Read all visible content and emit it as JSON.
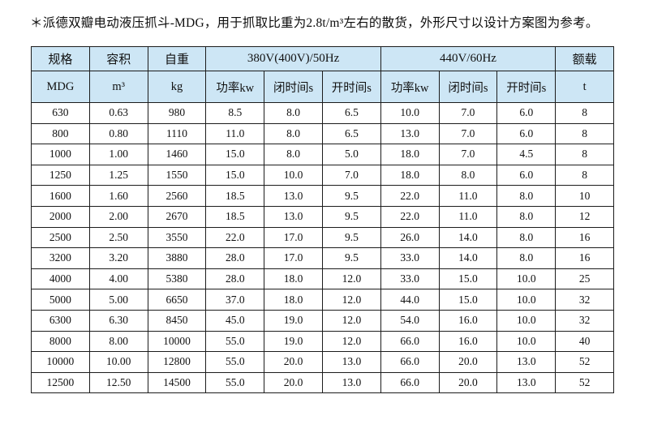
{
  "note": "＊派德双瓣电动液压抓斗-MDG，用于抓取比重为2.8t/m³左右的散货，外形尺寸以设计方案图为参考。",
  "colors": {
    "header_bg": "#cde6f5",
    "border": "#1c1c1c",
    "text": "#111111",
    "page_bg": "#ffffff"
  },
  "table": {
    "head1": {
      "spec": "规格",
      "capacity": "容积",
      "weight": "自重",
      "group_50hz": "380V(400V)/50Hz",
      "group_60hz": "440V/60Hz",
      "rated_load": "额载"
    },
    "head2": {
      "spec_unit": "MDG",
      "capacity_unit": "m³",
      "weight_unit": "kg",
      "power_50": "功率kw",
      "close_time_50": "闭时间s",
      "open_time_50": "开时间s",
      "power_60": "功率kw",
      "close_time_60": "闭时间s",
      "open_time_60": "开时间s",
      "load_unit": "t"
    },
    "rows": [
      [
        "630",
        "0.63",
        "980",
        "8.5",
        "8.0",
        "6.5",
        "10.0",
        "7.0",
        "6.0",
        "8"
      ],
      [
        "800",
        "0.80",
        "1110",
        "11.0",
        "8.0",
        "6.5",
        "13.0",
        "7.0",
        "6.0",
        "8"
      ],
      [
        "1000",
        "1.00",
        "1460",
        "15.0",
        "8.0",
        "5.0",
        "18.0",
        "7.0",
        "4.5",
        "8"
      ],
      [
        "1250",
        "1.25",
        "1550",
        "15.0",
        "10.0",
        "7.0",
        "18.0",
        "8.0",
        "6.0",
        "8"
      ],
      [
        "1600",
        "1.60",
        "2560",
        "18.5",
        "13.0",
        "9.5",
        "22.0",
        "11.0",
        "8.0",
        "10"
      ],
      [
        "2000",
        "2.00",
        "2670",
        "18.5",
        "13.0",
        "9.5",
        "22.0",
        "11.0",
        "8.0",
        "12"
      ],
      [
        "2500",
        "2.50",
        "3550",
        "22.0",
        "17.0",
        "9.5",
        "26.0",
        "14.0",
        "8.0",
        "16"
      ],
      [
        "3200",
        "3.20",
        "3880",
        "28.0",
        "17.0",
        "9.5",
        "33.0",
        "14.0",
        "8.0",
        "16"
      ],
      [
        "4000",
        "4.00",
        "5380",
        "28.0",
        "18.0",
        "12.0",
        "33.0",
        "15.0",
        "10.0",
        "25"
      ],
      [
        "5000",
        "5.00",
        "6650",
        "37.0",
        "18.0",
        "12.0",
        "44.0",
        "15.0",
        "10.0",
        "32"
      ],
      [
        "6300",
        "6.30",
        "8450",
        "45.0",
        "19.0",
        "12.0",
        "54.0",
        "16.0",
        "10.0",
        "32"
      ],
      [
        "8000",
        "8.00",
        "10000",
        "55.0",
        "19.0",
        "12.0",
        "66.0",
        "16.0",
        "10.0",
        "40"
      ],
      [
        "10000",
        "10.00",
        "12800",
        "55.0",
        "20.0",
        "13.0",
        "66.0",
        "20.0",
        "13.0",
        "52"
      ],
      [
        "12500",
        "12.50",
        "14500",
        "55.0",
        "20.0",
        "13.0",
        "66.0",
        "20.0",
        "13.0",
        "52"
      ]
    ]
  }
}
